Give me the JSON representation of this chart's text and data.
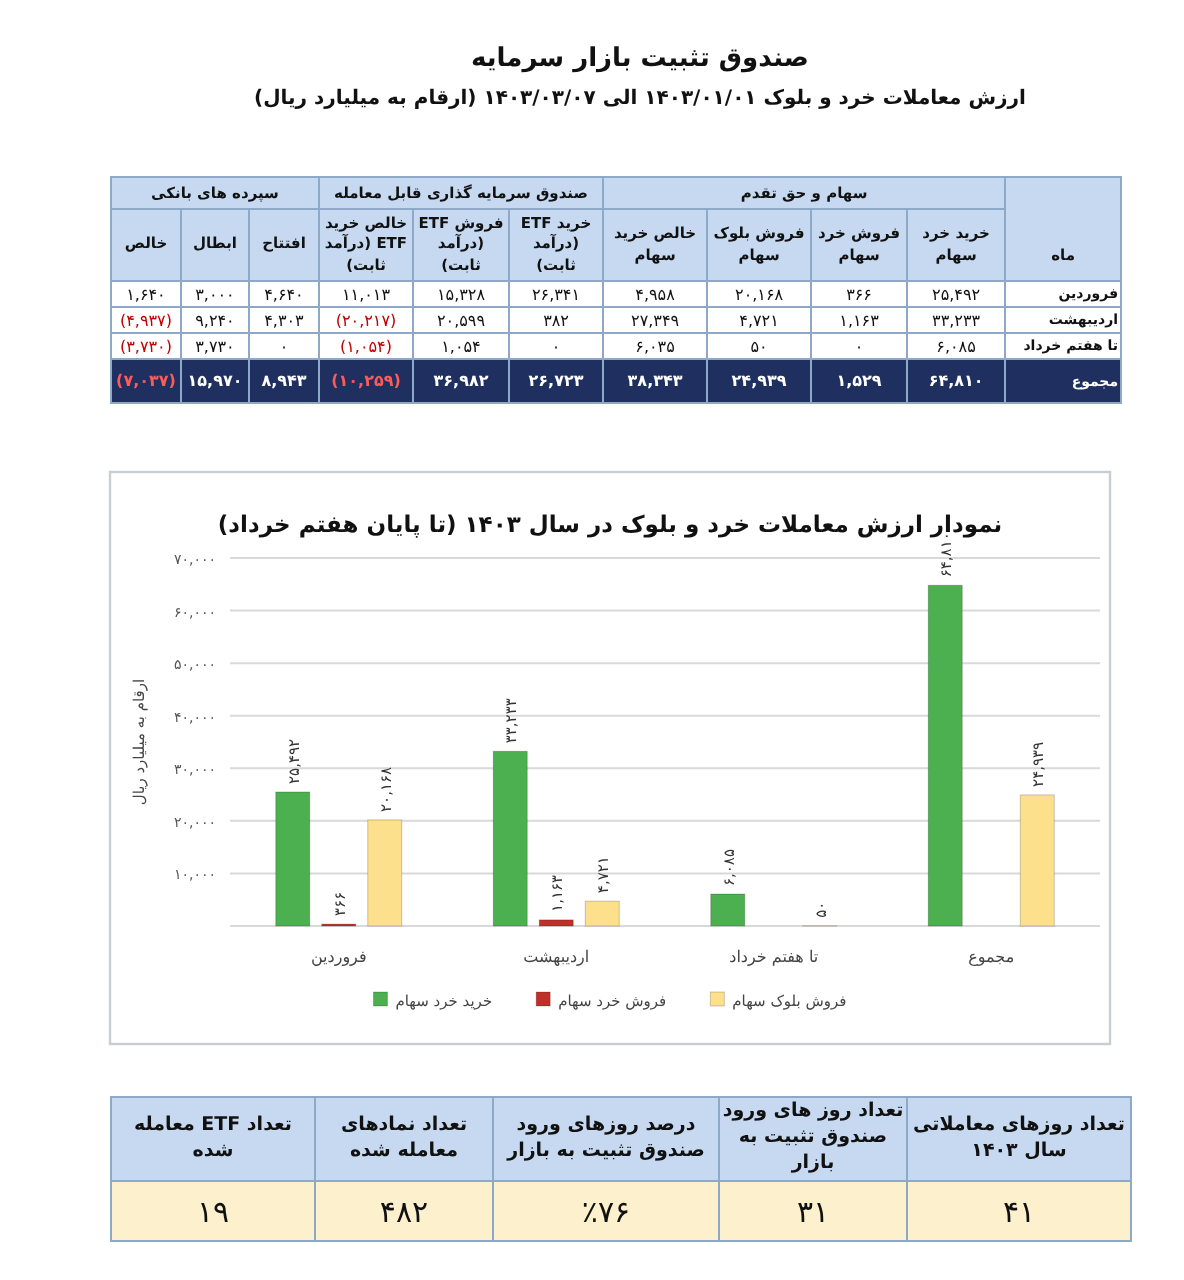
{
  "chart_data": [
    {
      "type": "other",
      "title": "صندوق تثبیت بازار سرمایه",
      "subtitle": "ارزش معاملات خرد و بلوک ۱۴۰۳/۰۱/۰۱ الی ۱۴۰۳/۰۳/۰۷ (ارقام به میلیارد ریال)",
      "annotations": [
        "سپرده های بانکی",
        "صندوق سرمایه گذاری قابل معامله",
        "سهام و حق تقدم"
      ],
      "ylabel": "ماه",
      "categories": [
        "خالص",
        "ابطال",
        "افتتاح",
        "خالص خرید ETF (درآمد ثابت)",
        "فروش ETF (درآمد ثابت)",
        "خرید ETF (درآمد ثابت)",
        "خالص خرید سهام",
        "فروش بلوک سهام",
        "فروش خرد سهام",
        "خرید خرد سهام"
      ],
      "y_categories": [
        "فروردین",
        "اردیبهشت",
        "تا هفتم خرداد",
        "مجموع"
      ],
      "cell_labels": [
        [
          "۱,۶۴۰",
          "۳,۰۰۰",
          "۴,۶۴۰",
          "۱۱,۰۱۳",
          "۱۵,۳۲۸",
          "۲۶,۳۴۱",
          "۴,۹۵۸",
          "۲۰,۱۶۸",
          "۳۶۶",
          "۲۵,۴۹۲"
        ],
        [
          "(۴,۹۳۷)",
          "۹,۲۴۰",
          "۴,۳۰۳",
          "(۲۰,۲۱۷)",
          "۲۰,۵۹۹",
          "۳۸۲",
          "۲۷,۳۴۹",
          "۴,۷۲۱",
          "۱,۱۶۳",
          "۳۳,۲۳۳"
        ],
        [
          "(۳,۷۳۰)",
          "۳,۷۳۰",
          "۰",
          "(۱,۰۵۴)",
          "۱,۰۵۴",
          "۰",
          "۶,۰۳۵",
          "۵۰",
          "۰",
          "۶,۰۸۵"
        ],
        [
          "(۷,۰۳۷)",
          "۱۵,۹۷۰",
          "۸,۹۴۳",
          "(۱۰,۲۵۹)",
          "۳۶,۹۸۲",
          "۲۶,۷۲۳",
          "۳۸,۳۴۳",
          "۲۴,۹۳۹",
          "۱,۵۲۹",
          "۶۴,۸۱۰"
        ]
      ]
    },
    {
      "type": "bar",
      "title": "نمودار ارزش معاملات خرد و بلوک در سال ۱۴۰۳ (تا پایان هفتم خرداد)",
      "ylabel": "ارقام به میلیارد ریال",
      "categories": [
        "فروردین",
        "اردیبهشت",
        "تا هفتم خرداد",
        "مجموع"
      ],
      "series": [
        {
          "name": "خرید خرد سهام",
          "color": "#4caf50",
          "values": [
            25492,
            33233,
            6085,
            64810
          ],
          "value_labels": [
            "۲۵,۴۹۲",
            "۳۳,۲۳۳",
            "۶,۰۸۵",
            "۶۴,۸۱۰"
          ]
        },
        {
          "name": "فروش خرد سهام",
          "color": "#c0302a",
          "values": [
            366,
            1163,
            0,
            null
          ],
          "value_labels": [
            "۳۶۶",
            "۱,۱۶۳",
            null,
            null
          ]
        },
        {
          "name": "فروش بلوک سهام",
          "color": "#fce08c",
          "values": [
            20168,
            4721,
            50,
            24939
          ],
          "value_labels": [
            "۲۰,۱۶۸",
            "۴,۷۲۱",
            "۵۰",
            "۲۴,۹۳۹"
          ]
        }
      ],
      "ylim": [
        0,
        70000
      ],
      "yticks": [
        {
          "value": 0,
          "label": null
        },
        {
          "value": 10000,
          "label": "۱۰,۰۰۰"
        },
        {
          "value": 20000,
          "label": "۲۰,۰۰۰"
        },
        {
          "value": 30000,
          "label": "۳۰,۰۰۰"
        },
        {
          "value": 40000,
          "label": "۴۰,۰۰۰"
        },
        {
          "value": 50000,
          "label": "۵۰,۰۰۰"
        },
        {
          "value": 60000,
          "label": "۶۰,۰۰۰"
        },
        {
          "value": 70000,
          "label": "۷۰,۰۰۰"
        }
      ],
      "grid": "y",
      "legend": "bottom"
    },
    {
      "type": "other",
      "categories": [
        "تعداد ETF معامله شده",
        "تعداد نمادهای معامله شده",
        "درصد روزهای ورود صندوق تثبیت به بازار",
        "تعداد روز های ورود صندوق تثبیت به بازار",
        "تعداد روزهای معاملاتی سال ۱۴۰۳"
      ],
      "cell_labels": [
        [
          "۱۹",
          "۴۸۲",
          "٪۷۶",
          "۳۱",
          "۴۱"
        ]
      ]
    }
  ]
}
